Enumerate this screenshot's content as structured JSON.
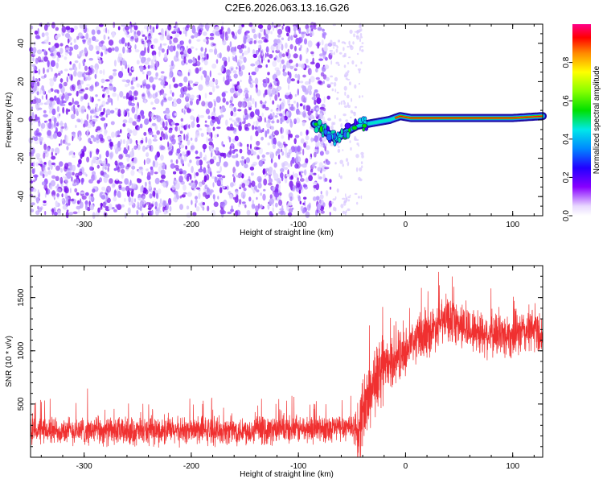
{
  "title": "C2E6.2026.063.13.16.G26",
  "chart_data": [
    {
      "type": "heatmap",
      "xlabel": "Height of straight line (km)",
      "ylabel": "Frequency (Hz)",
      "xlim": [
        -350,
        128
      ],
      "ylim": [
        -50,
        50
      ],
      "x_ticks": [
        -300,
        -200,
        -100,
        0,
        100
      ],
      "y_ticks": [
        -40,
        -20,
        0,
        20,
        40
      ],
      "colorbar": {
        "label": "Normalized spectral amplitude",
        "range": [
          0,
          1
        ],
        "ticks": [
          0.0,
          0.2,
          0.4,
          0.6,
          0.8
        ],
        "tick_labels": [
          "0.0",
          "0.2",
          "0.4",
          "0.6",
          "0.8"
        ]
      },
      "noise_region_km": [
        -350,
        -70
      ],
      "signal_track": {
        "x": [
          -85,
          -75,
          -65,
          -55,
          -45,
          -35,
          -25,
          -15,
          -5,
          5,
          25,
          50,
          75,
          100,
          128
        ],
        "y": [
          -2,
          -6,
          -10,
          -6,
          -3,
          -2,
          -1,
          0,
          2,
          1,
          1,
          1,
          1,
          1,
          2
        ]
      }
    },
    {
      "type": "line",
      "xlabel": "Height of straight line (km)",
      "ylabel": "SNR (10 * v/v)",
      "xlim": [
        -350,
        128
      ],
      "ylim": [
        0,
        1800
      ],
      "x_ticks": [
        -300,
        -200,
        -100,
        0,
        100
      ],
      "y_ticks": [
        500,
        1000,
        1500
      ],
      "color": "#f03030",
      "series": [
        {
          "x": [
            -350,
            -300,
            -250,
            -200,
            -150,
            -100,
            -60,
            -50,
            -45,
            -40,
            -30,
            -20,
            -10,
            0,
            10,
            20,
            30,
            40,
            50,
            60,
            80,
            100,
            120,
            128
          ],
          "y": [
            250,
            250,
            240,
            250,
            250,
            260,
            280,
            300,
            200,
            420,
            700,
            850,
            900,
            1000,
            1100,
            1150,
            1250,
            1300,
            1250,
            1200,
            1150,
            1150,
            1200,
            1150
          ]
        }
      ]
    }
  ]
}
